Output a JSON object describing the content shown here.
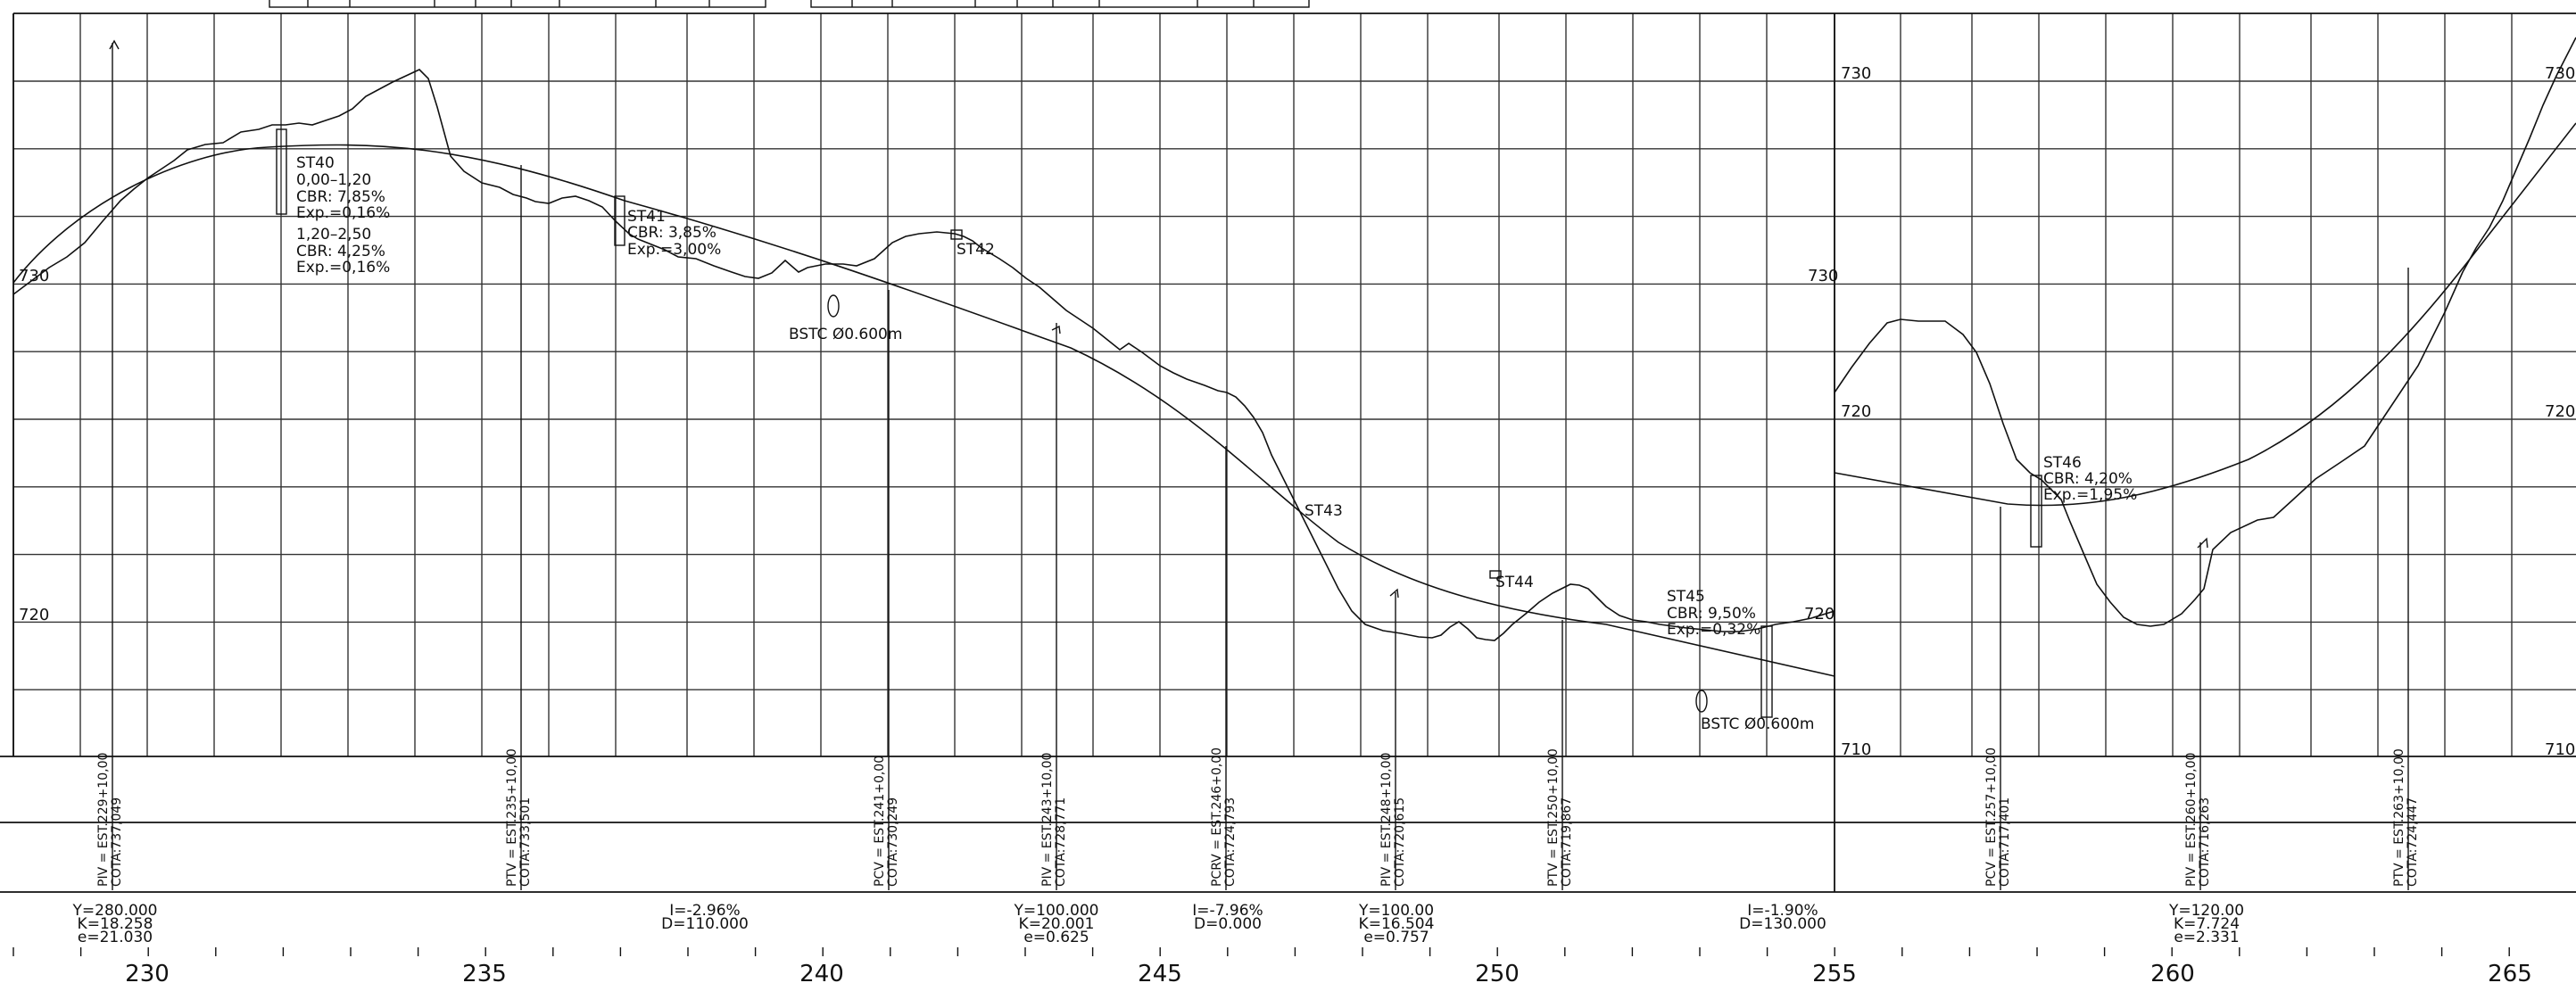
{
  "profile_left": {
    "elevation_labels": [
      {
        "text": "730"
      },
      {
        "text": "720"
      },
      {
        "text": "730"
      },
      {
        "text": "720"
      }
    ],
    "samples": [
      {
        "name": "ST40",
        "lines": [
          "ST40",
          "0,00–1,20",
          "CBR: 7,85%",
          "Exp.=0,16%",
          "1,20–2,50",
          "CBR: 4,25%",
          "Exp.=0,16%"
        ]
      },
      {
        "name": "ST41",
        "lines": [
          "ST41",
          "CBR: 3,85%",
          "Exp.=3,00%"
        ]
      },
      {
        "name": "ST42",
        "lines": [
          "ST42"
        ]
      },
      {
        "name": "ST43",
        "lines": [
          "ST43"
        ]
      },
      {
        "name": "ST44",
        "lines": [
          "ST44"
        ]
      },
      {
        "name": "ST45",
        "lines": [
          "ST45",
          "CBR: 9,50%",
          "Exp.=0,32%"
        ]
      }
    ],
    "culverts": [
      {
        "label": "BSTC Ø0.600m"
      },
      {
        "label": "BSTC Ø0.600m"
      }
    ]
  },
  "profile_right": {
    "elevation_labels": [
      {
        "text": "730"
      },
      {
        "text": "720"
      },
      {
        "text": "710"
      },
      {
        "text": "730"
      },
      {
        "text": "720"
      },
      {
        "text": "710"
      }
    ],
    "samples": [
      {
        "name": "ST46",
        "lines": [
          "ST46",
          "CBR: 4,20%",
          "Exp.=1,95%"
        ]
      }
    ]
  },
  "vertical_points": [
    {
      "label": "PIV = EST.229+10,00",
      "cota": "COTA:737,049"
    },
    {
      "label": "PTV = EST.235+10,00",
      "cota": "COTA:733,501"
    },
    {
      "label": "PCV = EST.241+0,00",
      "cota": "COTA:730,249"
    },
    {
      "label": "PIV = EST.243+10,00",
      "cota": "COTA:728,771"
    },
    {
      "label": "PCRV = EST.246+0,00",
      "cota": "COTA:724,793"
    },
    {
      "label": "PIV = EST.248+10,00",
      "cota": "COTA:720,615"
    },
    {
      "label": "PTV = EST.250+10,00",
      "cota": "COTA:719,867"
    },
    {
      "label": "PCV = EST.257+10,00",
      "cota": "COTA:717,401"
    },
    {
      "label": "PIV = EST.260+10,00",
      "cota": "COTA:716,263"
    },
    {
      "label": "PTV = EST.263+10,00",
      "cota": "COTA:724,447"
    }
  ],
  "curve_data": [
    {
      "lines": [
        "Y=280.000",
        "K=18.258",
        "e=21.030"
      ]
    },
    {
      "lines": [
        "I=-2.96%",
        "D=110.000"
      ]
    },
    {
      "lines": [
        "Y=100.000",
        "K=20.001",
        "e=0.625"
      ]
    },
    {
      "lines": [
        "I=-7.96%",
        "D=0.000"
      ]
    },
    {
      "lines": [
        "Y=100.00",
        "K=16.504",
        "e=0.757"
      ]
    },
    {
      "lines": [
        "I=-1.90%",
        "D=130.000"
      ]
    },
    {
      "lines": [
        "Y=120.00",
        "K=7.724",
        "e=2.331"
      ]
    }
  ],
  "stations": [
    "230",
    "235",
    "240",
    "245",
    "250",
    "255",
    "260",
    "265"
  ]
}
